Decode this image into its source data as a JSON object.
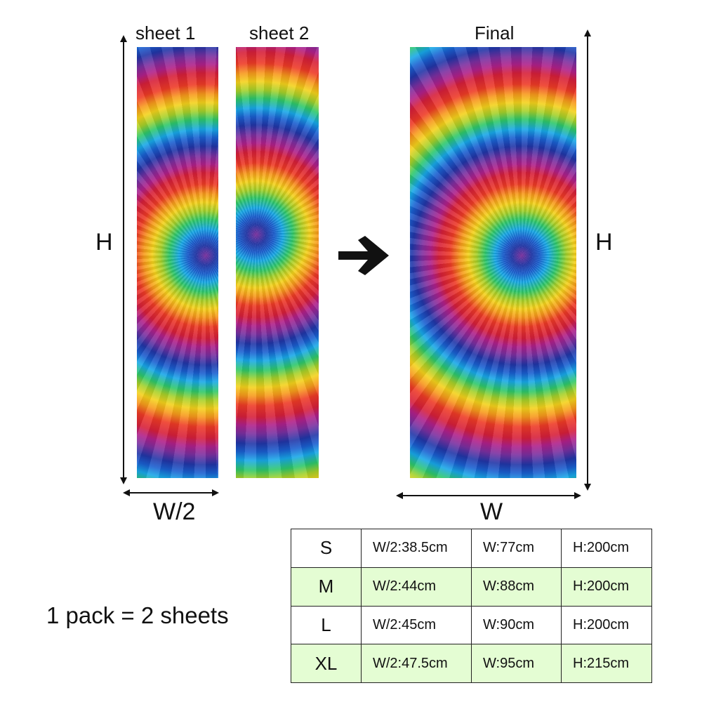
{
  "labels": {
    "sheet1": "sheet 1",
    "sheet2": "sheet 2",
    "final": "Final",
    "height_left": "H",
    "height_right": "H",
    "half_width": "W/2",
    "full_width": "W"
  },
  "panel_colors": [
    "#ee3b26",
    "#f79a1c",
    "#f4d21c",
    "#2ec86a",
    "#18a8e8",
    "#2136a8",
    "#7b2fa0"
  ],
  "icons": {
    "arrow": "right-arrow-icon"
  },
  "sizes": {
    "rows": [
      {
        "size": "S",
        "half_width": "W/2:38.5cm",
        "width": "W:77cm",
        "height": "H:200cm"
      },
      {
        "size": "M",
        "half_width": "W/2:44cm",
        "width": "W:88cm",
        "height": "H:200cm"
      },
      {
        "size": "L",
        "half_width": "W/2:45cm",
        "width": "W:90cm",
        "height": "H:200cm"
      },
      {
        "size": "XL",
        "half_width": "W/2:47.5cm",
        "width": "W:95cm",
        "height": "H:215cm"
      }
    ],
    "alt_row_color": "#e4fdd3"
  },
  "pack_note": "1 pack = 2 sheets"
}
